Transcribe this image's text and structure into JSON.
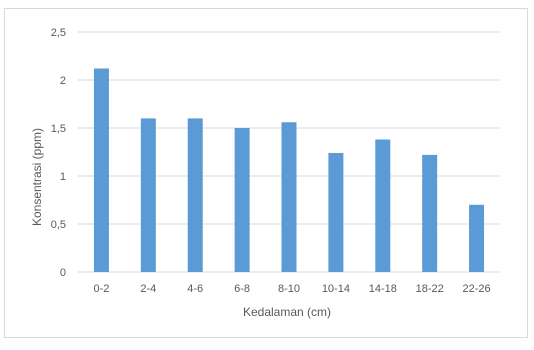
{
  "chart_data": {
    "type": "bar",
    "categories": [
      "0-2",
      "2-4",
      "4-6",
      "6-8",
      "8-10",
      "10-14",
      "14-18",
      "18-22",
      "22-26"
    ],
    "values": [
      2.12,
      1.6,
      1.6,
      1.5,
      1.56,
      1.24,
      1.38,
      1.22,
      0.7
    ],
    "yticks": [
      "0",
      "0,5",
      "1",
      "1,5",
      "2",
      "2,5"
    ],
    "ylim": [
      0,
      2.5
    ],
    "xlabel": "Kedalaman (cm)",
    "ylabel": "Konsentrasi (ppm)",
    "grid": true,
    "bar_color": "#5b9bd5",
    "grid_color": "#d9d9d9"
  }
}
